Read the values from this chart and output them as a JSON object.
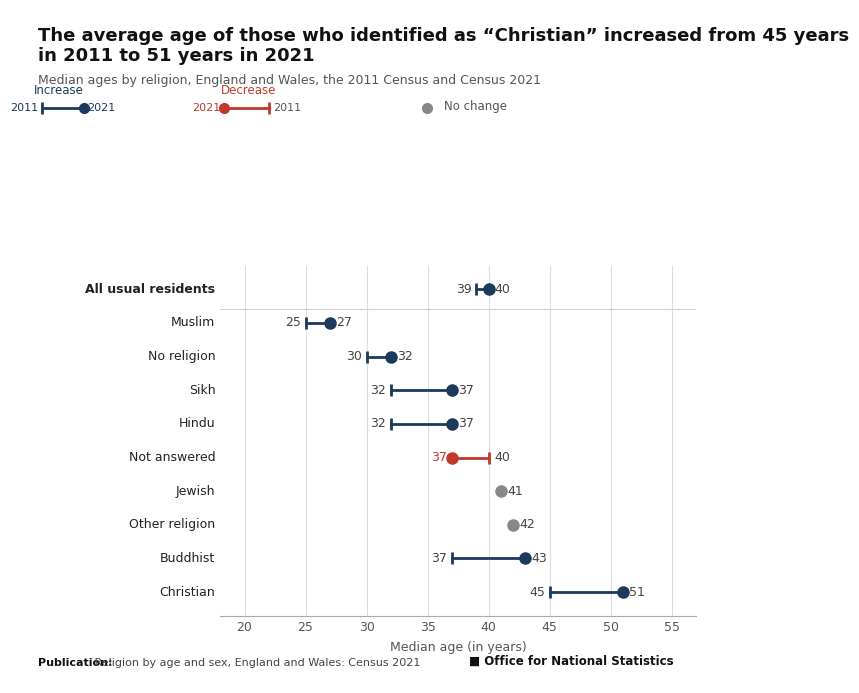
{
  "title_line1": "The average age of those who identified as “Christian” increased from 45 years",
  "title_line2": "in 2011 to 51 years in 2021",
  "subtitle": "Median ages by religion, England and Wales, the 2011 Census and Census 2021",
  "xlabel": "Median age (in years)",
  "publication_bold": "Publication:",
  "publication_rest": " Religion by age and sex, England and Wales: Census 2021",
  "xlim": [
    18,
    57
  ],
  "xticks": [
    20,
    25,
    30,
    35,
    40,
    45,
    50,
    55
  ],
  "categories": [
    "All usual residents",
    "Muslim",
    "No religion",
    "Sikh",
    "Hindu",
    "Not answered",
    "Jewish",
    "Other religion",
    "Buddhist",
    "Christian"
  ],
  "val_2011": [
    39,
    25,
    30,
    32,
    32,
    40,
    41,
    42,
    37,
    45
  ],
  "val_2021": [
    40,
    27,
    32,
    37,
    37,
    37,
    41,
    42,
    43,
    51
  ],
  "types": [
    "increase",
    "increase",
    "increase",
    "increase",
    "increase",
    "decrease",
    "no_change",
    "no_change",
    "increase",
    "increase"
  ],
  "color_increase": "#1b3a5c",
  "color_decrease": "#c0392b",
  "color_no_change": "#888888",
  "title_fontsize": 13,
  "subtitle_fontsize": 9,
  "label_fontsize": 9,
  "value_fontsize": 9,
  "axis_fontsize": 9,
  "legend_fontsize": 8.5,
  "pub_fontsize": 8
}
